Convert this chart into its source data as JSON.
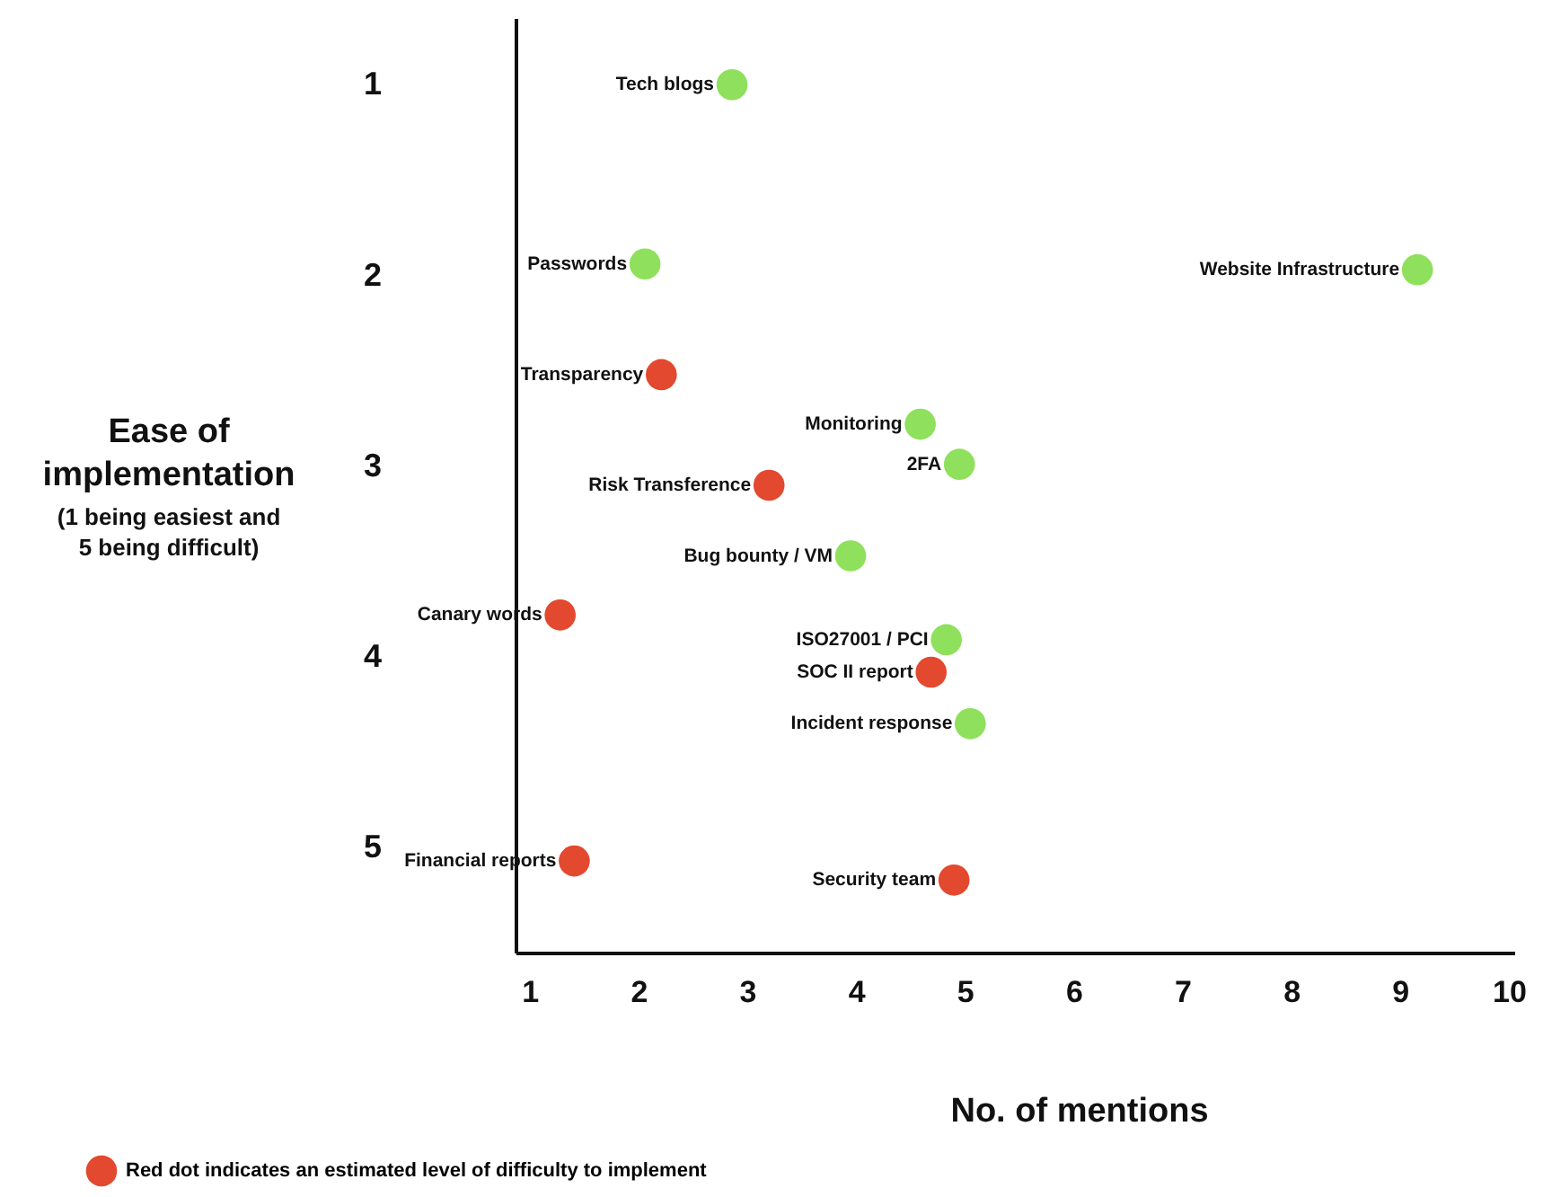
{
  "chart_data": {
    "type": "scatter",
    "xlabel": "No. of mentions",
    "ylabel": "Ease of implementation",
    "xlim": [
      0.87,
      10.05
    ],
    "ylim": [
      5.55,
      0.65
    ],
    "xticks": [
      1,
      2,
      3,
      4,
      5,
      6,
      7,
      8,
      9,
      10
    ],
    "yticks": [
      1,
      2,
      3,
      4,
      5
    ],
    "grid": false,
    "marker": "circle",
    "legend": "bottom left",
    "series": [
      {
        "color": "#8fe05c",
        "x": [
          2.86,
          2.06,
          9.16,
          4.59,
          4.95,
          3.95,
          4.83,
          5.05
        ],
        "values": [
          1.0,
          1.94,
          1.97,
          2.78,
          2.99,
          3.47,
          3.91,
          4.35
        ]
      },
      {
        "name": "Red dot indicates an estimated level of difficulty to implement",
        "color": "#e2492f",
        "x": [
          2.21,
          3.2,
          1.28,
          4.69,
          1.41,
          4.9
        ],
        "values": [
          2.52,
          3.1,
          3.78,
          4.08,
          5.07,
          5.17
        ]
      }
    ],
    "annotations": [
      "(1 being easiest and 5 being difficult)",
      {
        "text": "Tech blogs",
        "x": 2.86,
        "y": 1.0
      },
      {
        "text": "Passwords",
        "x": 2.06,
        "y": 1.94
      },
      {
        "text": "Website Infrastructure",
        "x": 9.16,
        "y": 1.97
      },
      {
        "text": "Monitoring",
        "x": 4.59,
        "y": 2.78
      },
      {
        "text": "2FA",
        "x": 4.95,
        "y": 2.99
      },
      {
        "text": "Bug bounty / VM",
        "x": 3.95,
        "y": 3.47
      },
      {
        "text": "ISO27001 / PCI",
        "x": 4.83,
        "y": 3.91
      },
      {
        "text": "Incident response",
        "x": 5.05,
        "y": 4.35
      },
      {
        "text": "Transparency",
        "x": 2.21,
        "y": 2.52
      },
      {
        "text": "Risk Transference",
        "x": 3.2,
        "y": 3.1
      },
      {
        "text": "Canary words",
        "x": 1.28,
        "y": 3.78
      },
      {
        "text": "SOC II report",
        "x": 4.69,
        "y": 4.08
      },
      {
        "text": "Financial reports",
        "x": 1.41,
        "y": 5.07
      },
      {
        "text": "Security team",
        "x": 4.9,
        "y": 5.17
      }
    ]
  }
}
